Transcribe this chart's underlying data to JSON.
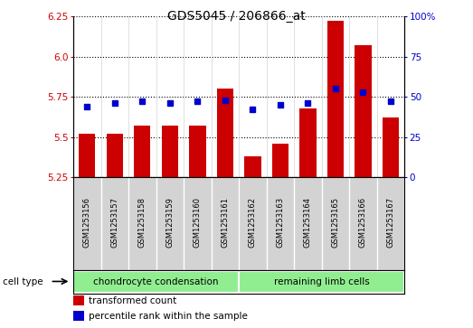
{
  "title": "GDS5045 / 206866_at",
  "samples": [
    "GSM1253156",
    "GSM1253157",
    "GSM1253158",
    "GSM1253159",
    "GSM1253160",
    "GSM1253161",
    "GSM1253162",
    "GSM1253163",
    "GSM1253164",
    "GSM1253165",
    "GSM1253166",
    "GSM1253167"
  ],
  "transformed_count": [
    5.52,
    5.52,
    5.57,
    5.57,
    5.57,
    5.8,
    5.38,
    5.46,
    5.68,
    6.22,
    6.07,
    5.62
  ],
  "percentile_rank": [
    44,
    46,
    47,
    46,
    47,
    48,
    42,
    45,
    46,
    55,
    53,
    47
  ],
  "cell_type_groups": [
    {
      "label": "chondrocyte condensation",
      "start": 0,
      "end": 5
    },
    {
      "label": "remaining limb cells",
      "start": 6,
      "end": 11
    }
  ],
  "ylim_left": [
    5.25,
    6.25
  ],
  "ylim_right": [
    0,
    100
  ],
  "yticks_left": [
    5.25,
    5.5,
    5.75,
    6.0,
    6.25
  ],
  "yticks_right": [
    0,
    25,
    50,
    75,
    100
  ],
  "bar_color": "#cc0000",
  "dot_color": "#0000cc",
  "cell_type_label": "cell type",
  "legend_items": [
    {
      "label": "transformed count",
      "color": "#cc0000"
    },
    {
      "label": "percentile rank within the sample",
      "color": "#0000cc"
    }
  ],
  "plot_bg_color": "#ffffff",
  "sample_bg_color": "#d3d3d3",
  "group_color": "#90EE90"
}
